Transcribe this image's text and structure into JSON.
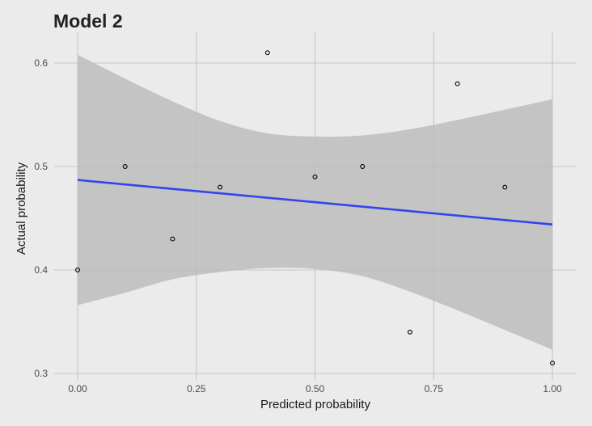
{
  "chart_data": {
    "type": "scatter",
    "title": "Model 2",
    "xlabel": "Predicted probability",
    "ylabel": "Actual probability",
    "xlim": [
      0,
      1
    ],
    "ylim": [
      0.3,
      0.6
    ],
    "x_ticks": [
      0.0,
      0.25,
      0.5,
      0.75,
      1.0
    ],
    "x_tick_labels": [
      "0.00",
      "0.25",
      "0.50",
      "0.75",
      "1.00"
    ],
    "y_ticks": [
      0.3,
      0.4,
      0.5,
      0.6
    ],
    "y_tick_labels": [
      "0.3",
      "0.4",
      "0.5",
      "0.6"
    ],
    "grid": true,
    "points": [
      {
        "x": 0.0,
        "y": 0.4
      },
      {
        "x": 0.1,
        "y": 0.5
      },
      {
        "x": 0.2,
        "y": 0.43
      },
      {
        "x": 0.3,
        "y": 0.48
      },
      {
        "x": 0.4,
        "y": 0.61
      },
      {
        "x": 0.5,
        "y": 0.49
      },
      {
        "x": 0.6,
        "y": 0.5
      },
      {
        "x": 0.7,
        "y": 0.34
      },
      {
        "x": 0.8,
        "y": 0.58
      },
      {
        "x": 0.9,
        "y": 0.48
      },
      {
        "x": 1.0,
        "y": 0.31
      }
    ],
    "fit_line": {
      "x": [
        0.0,
        1.0
      ],
      "y": [
        0.487,
        0.444
      ]
    },
    "confidence_band": {
      "x": [
        0.0,
        0.1,
        0.2,
        0.3,
        0.4,
        0.5,
        0.6,
        0.7,
        0.8,
        0.9,
        1.0
      ],
      "upper": [
        0.608,
        0.585,
        0.563,
        0.544,
        0.532,
        0.529,
        0.53,
        0.536,
        0.545,
        0.555,
        0.565
      ],
      "lower": [
        0.366,
        0.378,
        0.391,
        0.398,
        0.402,
        0.401,
        0.394,
        0.379,
        0.361,
        0.342,
        0.323
      ]
    },
    "colors": {
      "background": "#ebebeb",
      "grid": "#c4c4c4",
      "band": "#bdbdbd",
      "fit_line": "#3344ee",
      "point_stroke": "#000000"
    }
  }
}
